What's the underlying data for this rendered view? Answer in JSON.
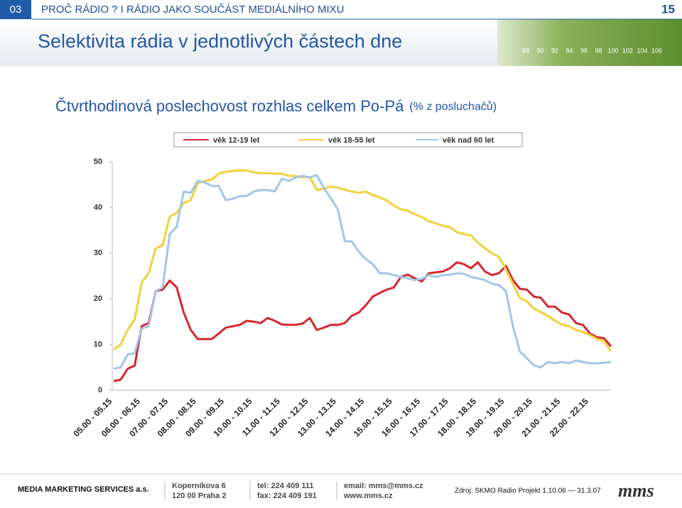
{
  "header": {
    "section": "03",
    "breadcrumb": "PROČ RÁDIO ?  I  RÁDIO JAKO SOUČÁST MEDIÁLNÍHO MIXU",
    "page": "15",
    "title": "Selektivita rádia v jednotlivých částech dne",
    "frequencies": [
      "88",
      "90",
      "92",
      "94",
      "96",
      "98",
      "100",
      "102",
      "104",
      "106"
    ]
  },
  "chart_data": {
    "type": "line",
    "title": "Čtvrthodinová poslechovost rozhlas celkem Po-Pá",
    "subtitle": "(% z posluchačů)",
    "categories": [
      "05.00 - 05.15",
      null,
      null,
      null,
      "06.00 - 06.15",
      null,
      null,
      null,
      "07.00 - 07.15",
      null,
      null,
      null,
      "08.00 - 08.15",
      null,
      null,
      null,
      "09.00 - 09.15",
      null,
      null,
      null,
      "10.00 - 10.15",
      null,
      null,
      null,
      "11.00 - 11.15",
      null,
      null,
      null,
      "12.00 - 12.15",
      null,
      null,
      null,
      "13.00 - 13.15",
      null,
      null,
      null,
      "14.00 - 14.15",
      null,
      null,
      null,
      "15.00 - 15.15",
      null,
      null,
      null,
      "16.00 - 16.15",
      null,
      null,
      null,
      "17.00 - 17.15",
      null,
      null,
      null,
      "18.00 - 18.15",
      null,
      null,
      null,
      "19.00 - 19.15",
      null,
      null,
      null,
      "20.00 - 20.15",
      null,
      null,
      null,
      "21.00 - 21.15",
      null,
      null,
      null,
      "22.00 - 22.15",
      null,
      null,
      null
    ],
    "series": [
      {
        "name": "věk 12-19 let",
        "color": "#d7262e",
        "values": [
          2,
          2.3,
          4.7,
          5.4,
          14,
          14.7,
          21.7,
          22,
          24,
          22.5,
          17,
          13.2,
          11.2,
          11.2,
          11.2,
          12.4,
          13.7,
          14,
          14.3,
          15.2,
          15,
          14.7,
          15.8,
          15.2,
          14.4,
          14.3,
          14.3,
          14.6,
          15.8,
          13.2,
          13.7,
          14.3,
          14.3,
          14.7,
          16.3,
          17,
          18.6,
          20.5,
          21.3,
          22,
          22.5,
          24.8,
          25.3,
          24.5,
          23.8,
          25.6,
          25.8,
          26,
          26.7,
          28,
          27.6,
          26.7,
          28,
          26,
          25.2,
          25.6,
          27.2,
          24.1,
          22.2,
          22,
          20.5,
          20.2,
          18.3,
          18.3,
          17,
          16.6,
          14.7,
          14.3,
          12.4,
          11.6,
          11.4,
          9.6
        ]
      },
      {
        "name": "věk 18-55 let",
        "color": "#f2d13a",
        "values": [
          8.9,
          10,
          13.2,
          15.5,
          23.6,
          25.6,
          31,
          31.8,
          38,
          38.8,
          41,
          41.6,
          45.3,
          45.8,
          46.1,
          47.4,
          47.8,
          48,
          48.1,
          48.1,
          47.7,
          47.5,
          47.5,
          47.4,
          47.4,
          46.9,
          46.9,
          46.6,
          46.6,
          43.8,
          44.1,
          44.6,
          44.3,
          43.9,
          43.5,
          43.2,
          43.5,
          42.7,
          42.2,
          41.5,
          40.4,
          39.6,
          39.3,
          38.5,
          37.9,
          37,
          36.5,
          36,
          35.7,
          34.6,
          34.2,
          33.9,
          32.3,
          31.1,
          30,
          29.2,
          26.4,
          23.3,
          20.2,
          19.4,
          17.9,
          17.1,
          16.3,
          15.2,
          14.4,
          14,
          13.2,
          12.7,
          12.1,
          11.2,
          10.8,
          8.5
        ]
      },
      {
        "name": "věk nad 60 let",
        "color": "#a3c6e8",
        "values": [
          4.7,
          5,
          7.8,
          8.1,
          13.5,
          14,
          21.7,
          22.5,
          34.2,
          35.7,
          43.5,
          43.2,
          45.8,
          45.5,
          44.7,
          44.7,
          41.6,
          41.9,
          42.5,
          42.5,
          43.5,
          43.8,
          43.8,
          43.5,
          46.3,
          45.8,
          46.6,
          46.9,
          46.6,
          47.1,
          44.3,
          42,
          39.6,
          32.6,
          32.6,
          30.3,
          28.7,
          27.6,
          25.6,
          25.6,
          25.2,
          24.8,
          24.5,
          24.1,
          24.4,
          25.2,
          24.8,
          25.2,
          25.3,
          25.6,
          25.5,
          24.8,
          24.5,
          24.1,
          23.3,
          23,
          21.7,
          14,
          8.5,
          7,
          5.4,
          5,
          6.2,
          5.9,
          6.2,
          5.9,
          6.5,
          6.2,
          5.9,
          5.9,
          6,
          6.2
        ]
      }
    ],
    "ylim": [
      0,
      50
    ],
    "yticks": [
      0,
      10,
      20,
      30,
      40,
      50
    ],
    "grid": false
  },
  "footer": {
    "company": "MEDIA MARKETING SERVICES a.s.",
    "address": [
      "Kopernikova 6",
      "120 00 Praha 2"
    ],
    "phones": [
      "tel: 224 409 111",
      "fax: 224 409 191"
    ],
    "web": [
      "email: mms@mms.cz",
      "www.mms.cz"
    ],
    "source": "Zdroj: SKMO Radio Projekt 1.10.06 — 31.3.07",
    "logo": "mms"
  }
}
